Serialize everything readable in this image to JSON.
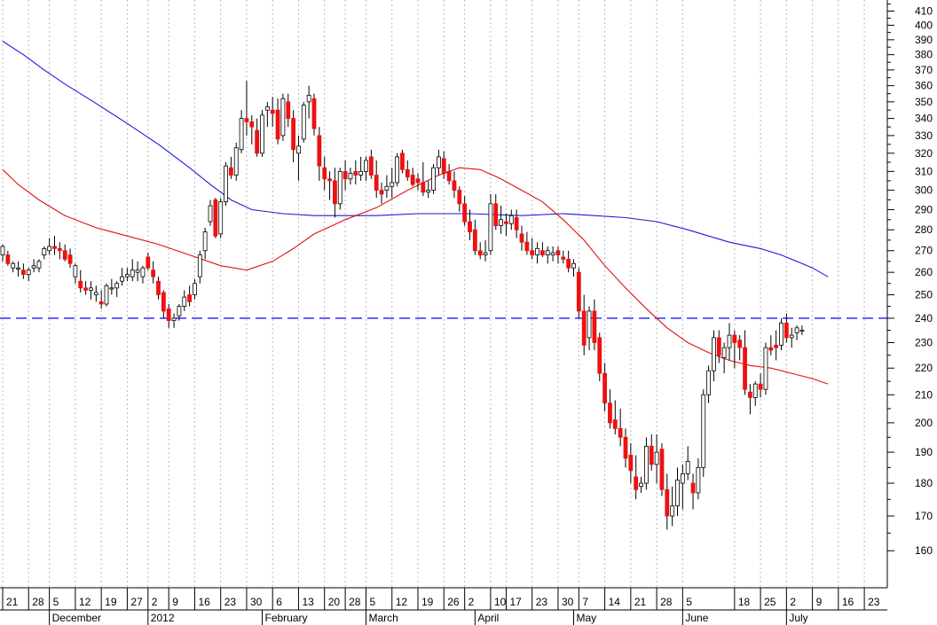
{
  "chart_data": {
    "type": "candlestick",
    "ylim": [
      150,
      418
    ],
    "y_scale": "log",
    "grid": "vertical dotted",
    "reference_line": {
      "value": 240,
      "style": "dashed",
      "color": "#1a1aff"
    },
    "y_ticks": [
      410,
      400,
      390,
      380,
      370,
      360,
      350,
      340,
      330,
      320,
      310,
      300,
      290,
      280,
      270,
      260,
      250,
      240,
      230,
      220,
      210,
      200,
      190,
      180,
      170,
      160
    ],
    "x_day_ticks": [
      {
        "i": 0,
        "label": "21"
      },
      {
        "i": 5,
        "label": "28"
      },
      {
        "i": 9,
        "label": "5"
      },
      {
        "i": 14,
        "label": "12"
      },
      {
        "i": 19,
        "label": "19"
      },
      {
        "i": 24,
        "label": "27"
      },
      {
        "i": 28,
        "label": "2"
      },
      {
        "i": 32,
        "label": "9"
      },
      {
        "i": 37,
        "label": "16"
      },
      {
        "i": 42,
        "label": "23"
      },
      {
        "i": 47,
        "label": "30"
      },
      {
        "i": 52,
        "label": "6"
      },
      {
        "i": 57,
        "label": "13"
      },
      {
        "i": 62,
        "label": "20"
      },
      {
        "i": 66,
        "label": "28"
      },
      {
        "i": 70,
        "label": "5"
      },
      {
        "i": 75,
        "label": "12"
      },
      {
        "i": 80,
        "label": "19"
      },
      {
        "i": 85,
        "label": "26"
      },
      {
        "i": 89,
        "label": "2"
      },
      {
        "i": 94,
        "label": "10"
      },
      {
        "i": 97,
        "label": "17"
      },
      {
        "i": 102,
        "label": "23"
      },
      {
        "i": 107,
        "label": "30"
      },
      {
        "i": 111,
        "label": "7"
      },
      {
        "i": 116,
        "label": "14"
      },
      {
        "i": 121,
        "label": "21"
      },
      {
        "i": 126,
        "label": "28"
      },
      {
        "i": 131,
        "label": "5"
      },
      {
        "i": 141,
        "label": "18"
      },
      {
        "i": 146,
        "label": "25"
      },
      {
        "i": 151,
        "label": "2"
      },
      {
        "i": 156,
        "label": "9"
      },
      {
        "i": 161,
        "label": "16"
      },
      {
        "i": 166,
        "label": "23"
      }
    ],
    "x_month_labels": [
      {
        "i": 9,
        "label": "December"
      },
      {
        "i": 28,
        "label": "2012"
      },
      {
        "i": 50,
        "label": "February"
      },
      {
        "i": 70,
        "label": "March"
      },
      {
        "i": 91,
        "label": "April"
      },
      {
        "i": 110,
        "label": "May"
      },
      {
        "i": 131,
        "label": "June"
      },
      {
        "i": 151,
        "label": "July"
      }
    ],
    "ohlc": [
      [
        268,
        273,
        265,
        272
      ],
      [
        268,
        270,
        263,
        264
      ],
      [
        262,
        265,
        260,
        264
      ],
      [
        262,
        265,
        258,
        262
      ],
      [
        261,
        264,
        257,
        259
      ],
      [
        259,
        262,
        256,
        261
      ],
      [
        262,
        266,
        260,
        263
      ],
      [
        262,
        266,
        260,
        265
      ],
      [
        268,
        272,
        266,
        271
      ],
      [
        270,
        276,
        268,
        272
      ],
      [
        272,
        277,
        268,
        271
      ],
      [
        271,
        274,
        266,
        270
      ],
      [
        270,
        273,
        265,
        266
      ],
      [
        268,
        271,
        262,
        264
      ],
      [
        258,
        264,
        255,
        263
      ],
      [
        256,
        261,
        251,
        253
      ],
      [
        253,
        256,
        250,
        252
      ],
      [
        252,
        256,
        248,
        253
      ],
      [
        250,
        254,
        247,
        251
      ],
      [
        247,
        252,
        244,
        246
      ],
      [
        246,
        255,
        245,
        254
      ],
      [
        253,
        257,
        250,
        253
      ],
      [
        253,
        256,
        249,
        255
      ],
      [
        256,
        262,
        254,
        258
      ],
      [
        258,
        262,
        256,
        259
      ],
      [
        258,
        266,
        256,
        261
      ],
      [
        260,
        265,
        256,
        261
      ],
      [
        258,
        263,
        255,
        262
      ],
      [
        267,
        269,
        261,
        262
      ],
      [
        261,
        265,
        255,
        258
      ],
      [
        256,
        258,
        248,
        250
      ],
      [
        251,
        252,
        240,
        243
      ],
      [
        244,
        246,
        236,
        239
      ],
      [
        239,
        242,
        236,
        240
      ],
      [
        241,
        246,
        239,
        245
      ],
      [
        245,
        252,
        243,
        249
      ],
      [
        250,
        254,
        245,
        247
      ],
      [
        250,
        257,
        248,
        255
      ],
      [
        258,
        270,
        255,
        268
      ],
      [
        270,
        281,
        266,
        279
      ],
      [
        284,
        295,
        282,
        292
      ],
      [
        295,
        296,
        276,
        277
      ],
      [
        278,
        296,
        276,
        294
      ],
      [
        294,
        315,
        292,
        313
      ],
      [
        312,
        318,
        306,
        308
      ],
      [
        308,
        326,
        305,
        323
      ],
      [
        322,
        345,
        320,
        340
      ],
      [
        340,
        363,
        330,
        338
      ],
      [
        338,
        342,
        325,
        335
      ],
      [
        333,
        340,
        318,
        320
      ],
      [
        320,
        345,
        318,
        342
      ],
      [
        345,
        350,
        335,
        347
      ],
      [
        345,
        353,
        335,
        343
      ],
      [
        345,
        352,
        325,
        328
      ],
      [
        330,
        355,
        327,
        352
      ],
      [
        350,
        355,
        335,
        340
      ],
      [
        340,
        345,
        315,
        322
      ],
      [
        320,
        330,
        305,
        324
      ],
      [
        328,
        350,
        326,
        348
      ],
      [
        350,
        360,
        340,
        354
      ],
      [
        352,
        355,
        330,
        334
      ],
      [
        330,
        335,
        305,
        313
      ],
      [
        312,
        318,
        300,
        306
      ],
      [
        306,
        310,
        295,
        305
      ],
      [
        305,
        312,
        286,
        293
      ],
      [
        293,
        312,
        290,
        310
      ],
      [
        310,
        316,
        300,
        306
      ],
      [
        306,
        312,
        303,
        309
      ],
      [
        310,
        316,
        303,
        308
      ],
      [
        308,
        318,
        305,
        310
      ],
      [
        310,
        318,
        305,
        316
      ],
      [
        318,
        322,
        306,
        308
      ],
      [
        308,
        316,
        296,
        300
      ],
      [
        300,
        304,
        293,
        298
      ],
      [
        300,
        308,
        296,
        302
      ],
      [
        302,
        312,
        296,
        304
      ],
      [
        304,
        320,
        302,
        318
      ],
      [
        320,
        322,
        309,
        311
      ],
      [
        311,
        316,
        305,
        307
      ],
      [
        308,
        312,
        302,
        303
      ],
      [
        306,
        309,
        300,
        304
      ],
      [
        304,
        315,
        297,
        299
      ],
      [
        299,
        305,
        296,
        300
      ],
      [
        300,
        314,
        298,
        312
      ],
      [
        312,
        322,
        308,
        318
      ],
      [
        317,
        321,
        306,
        309
      ],
      [
        310,
        314,
        303,
        305
      ],
      [
        305,
        310,
        296,
        300
      ],
      [
        300,
        302,
        289,
        293
      ],
      [
        293,
        297,
        282,
        284
      ],
      [
        284,
        290,
        275,
        279
      ],
      [
        280,
        285,
        268,
        270
      ],
      [
        270,
        274,
        266,
        268
      ],
      [
        268,
        275,
        265,
        269
      ],
      [
        270,
        298,
        268,
        293
      ],
      [
        293,
        298,
        280,
        282
      ],
      [
        282,
        292,
        278,
        285
      ],
      [
        284,
        288,
        277,
        283
      ],
      [
        283,
        290,
        280,
        287
      ],
      [
        286,
        290,
        276,
        280
      ],
      [
        278,
        282,
        270,
        274
      ],
      [
        274,
        279,
        268,
        270
      ],
      [
        270,
        276,
        266,
        268
      ],
      [
        268,
        274,
        264,
        271
      ],
      [
        270,
        274,
        267,
        268
      ],
      [
        268,
        272,
        264,
        270
      ],
      [
        268,
        272,
        265,
        269
      ],
      [
        270,
        272,
        264,
        268
      ],
      [
        267,
        270,
        264,
        266
      ],
      [
        266,
        270,
        260,
        262
      ],
      [
        262,
        266,
        258,
        264
      ],
      [
        260,
        262,
        240,
        243
      ],
      [
        243,
        250,
        225,
        229
      ],
      [
        232,
        245,
        227,
        243
      ],
      [
        243,
        248,
        227,
        230
      ],
      [
        232,
        234,
        215,
        218
      ],
      [
        218,
        222,
        204,
        207
      ],
      [
        207,
        212,
        198,
        200
      ],
      [
        201,
        208,
        196,
        198
      ],
      [
        198,
        205,
        192,
        195
      ],
      [
        195,
        198,
        185,
        188
      ],
      [
        189,
        193,
        180,
        184
      ],
      [
        182,
        189,
        175,
        178
      ],
      [
        179,
        182,
        177,
        180
      ],
      [
        180,
        195,
        178,
        192
      ],
      [
        192,
        196,
        184,
        186
      ],
      [
        186,
        196,
        180,
        190
      ],
      [
        191,
        193,
        176,
        178
      ],
      [
        178,
        183,
        166,
        170
      ],
      [
        170,
        179,
        167,
        173
      ],
      [
        173,
        185,
        170,
        181
      ],
      [
        180,
        186,
        172,
        183
      ],
      [
        183,
        192,
        181,
        187
      ],
      [
        180,
        183,
        172,
        177
      ],
      [
        177,
        188,
        175,
        185
      ],
      [
        185,
        212,
        182,
        210
      ],
      [
        210,
        221,
        207,
        219
      ],
      [
        219,
        235,
        215,
        232
      ],
      [
        232,
        235,
        222,
        225
      ],
      [
        224,
        230,
        218,
        228
      ],
      [
        228,
        238,
        223,
        233
      ],
      [
        233,
        235,
        220,
        230
      ],
      [
        231,
        233,
        223,
        228
      ],
      [
        228,
        235,
        210,
        212
      ],
      [
        211,
        214,
        203,
        209
      ],
      [
        209,
        215,
        206,
        214
      ],
      [
        214,
        218,
        209,
        212
      ],
      [
        212,
        230,
        210,
        228
      ],
      [
        228,
        233,
        225,
        227
      ],
      [
        229,
        235,
        223,
        228
      ],
      [
        229,
        240,
        227,
        238
      ],
      [
        238,
        242,
        230,
        232
      ],
      [
        232,
        236,
        228,
        233
      ],
      [
        234,
        237,
        231,
        236
      ],
      [
        235,
        237,
        233,
        235
      ]
    ],
    "ma_short": [
      [
        0,
        311
      ],
      [
        3,
        303
      ],
      [
        7,
        295
      ],
      [
        12,
        287
      ],
      [
        18,
        281
      ],
      [
        24,
        277
      ],
      [
        30,
        273
      ],
      [
        36,
        268
      ],
      [
        42,
        263
      ],
      [
        47,
        261
      ],
      [
        52,
        265
      ],
      [
        56,
        271
      ],
      [
        60,
        278
      ],
      [
        66,
        285
      ],
      [
        72,
        291
      ],
      [
        78,
        300
      ],
      [
        84,
        308
      ],
      [
        88,
        312
      ],
      [
        92,
        311
      ],
      [
        96,
        306
      ],
      [
        100,
        300
      ],
      [
        104,
        294
      ],
      [
        108,
        285
      ],
      [
        112,
        275
      ],
      [
        116,
        263
      ],
      [
        120,
        253
      ],
      [
        124,
        244
      ],
      [
        128,
        236
      ],
      [
        132,
        230
      ],
      [
        136,
        226
      ],
      [
        140,
        223
      ],
      [
        144,
        221
      ],
      [
        148,
        220
      ],
      [
        152,
        218
      ],
      [
        156,
        216
      ],
      [
        159,
        214
      ]
    ],
    "ma_long": [
      [
        0,
        389
      ],
      [
        4,
        380
      ],
      [
        8,
        370
      ],
      [
        12,
        361
      ],
      [
        18,
        349
      ],
      [
        24,
        337
      ],
      [
        30,
        325
      ],
      [
        36,
        312
      ],
      [
        40,
        303
      ],
      [
        44,
        295
      ],
      [
        48,
        290
      ],
      [
        54,
        288
      ],
      [
        60,
        287
      ],
      [
        66,
        287
      ],
      [
        72,
        287
      ],
      [
        80,
        288
      ],
      [
        90,
        288
      ],
      [
        100,
        287
      ],
      [
        108,
        288
      ],
      [
        114,
        287
      ],
      [
        120,
        286
      ],
      [
        126,
        284
      ],
      [
        132,
        280
      ],
      [
        136,
        277
      ],
      [
        140,
        274
      ],
      [
        146,
        271
      ],
      [
        150,
        268
      ],
      [
        154,
        264
      ],
      [
        156,
        262
      ],
      [
        159,
        258
      ]
    ]
  }
}
